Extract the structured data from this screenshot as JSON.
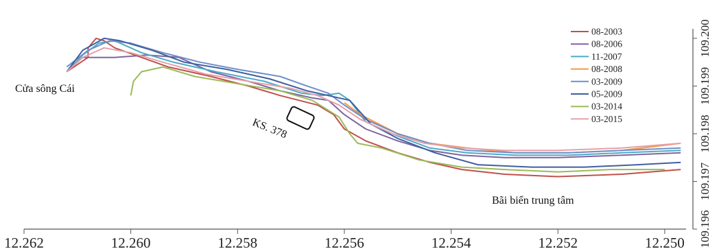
{
  "chart_data": {
    "type": "line",
    "x_ticks": [
      "12.262",
      "12.260",
      "12.258",
      "12.256",
      "12.254",
      "12.252",
      "12.250"
    ],
    "y_ticks": [
      "109.196",
      "109.197",
      "109.198",
      "109.199",
      "109.200"
    ],
    "xlim": [
      12.262,
      12.2496
    ],
    "ylim": [
      109.196,
      109.2002
    ],
    "annotations": {
      "river_mouth": "Cửa sông Cái",
      "station": "KS. 378",
      "beach": "Bãi biển trung tâm"
    },
    "legend_position": "top-right",
    "series": [
      {
        "name": "08-2003",
        "color": "#c0504d",
        "points": [
          [
            12.2612,
            109.1993
          ],
          [
            12.2608,
            109.1996
          ],
          [
            12.2608,
            109.1998
          ],
          [
            12.26065,
            109.2
          ],
          [
            12.2605,
            109.19995
          ],
          [
            12.2603,
            109.1998
          ],
          [
            12.2598,
            109.1996
          ],
          [
            12.2593,
            109.1994
          ],
          [
            12.2585,
            109.1992
          ],
          [
            12.2578,
            109.199
          ],
          [
            12.2572,
            109.1988
          ],
          [
            12.2565,
            109.1986
          ],
          [
            12.2562,
            109.1984
          ],
          [
            12.256,
            109.1981
          ],
          [
            12.2556,
            109.19785
          ],
          [
            12.255,
            109.1976
          ],
          [
            12.2544,
            109.1974
          ],
          [
            12.2538,
            109.19725
          ],
          [
            12.253,
            109.19715
          ],
          [
            12.252,
            109.1971
          ],
          [
            12.2508,
            109.19715
          ],
          [
            12.2497,
            109.19725
          ]
        ]
      },
      {
        "name": "08-2006",
        "color": "#8064a2",
        "points": [
          [
            12.2612,
            109.1993
          ],
          [
            12.2609,
            109.1996
          ],
          [
            12.2607,
            109.1996
          ],
          [
            12.2603,
            109.1996
          ],
          [
            12.2597,
            109.19965
          ],
          [
            12.2591,
            109.1996
          ],
          [
            12.2585,
            109.1993
          ],
          [
            12.2578,
            109.1991
          ],
          [
            12.2572,
            109.1989
          ],
          [
            12.2566,
            109.19875
          ],
          [
            12.2563,
            109.1987
          ],
          [
            12.256,
            109.1984
          ],
          [
            12.2556,
            109.1981
          ],
          [
            12.255,
            109.19785
          ],
          [
            12.2544,
            109.19765
          ],
          [
            12.2538,
            109.19755
          ],
          [
            12.253,
            109.1975
          ],
          [
            12.252,
            109.1975
          ],
          [
            12.2508,
            109.19755
          ],
          [
            12.2497,
            109.1976
          ]
        ]
      },
      {
        "name": "11-2007",
        "color": "#4bacc6",
        "points": [
          [
            12.2612,
            109.1993
          ],
          [
            12.2609,
            109.19965
          ],
          [
            12.2606,
            109.1999
          ],
          [
            12.2603,
            109.19995
          ],
          [
            12.2598,
            109.1997
          ],
          [
            12.2592,
            109.1995
          ],
          [
            12.2584,
            109.1993
          ],
          [
            12.2575,
            109.1991
          ],
          [
            12.2568,
            109.19885
          ],
          [
            12.2564,
            109.1988
          ],
          [
            12.2561,
            109.19885
          ],
          [
            12.2559,
            109.1987
          ],
          [
            12.2556,
            109.19825
          ],
          [
            12.255,
            109.19795
          ],
          [
            12.2544,
            109.1977
          ],
          [
            12.2537,
            109.1976
          ],
          [
            12.2528,
            109.19755
          ],
          [
            12.2518,
            109.19755
          ],
          [
            12.2508,
            109.1976
          ],
          [
            12.2497,
            109.19765
          ]
        ]
      },
      {
        "name": "08-2008",
        "color": "#f79646",
        "points": [
          [
            12.256,
            109.19865
          ],
          [
            12.2557,
            109.1984
          ],
          [
            12.255,
            109.198
          ],
          [
            12.2544,
            109.1978
          ],
          [
            12.2537,
            109.1977
          ],
          [
            12.2528,
            109.1976
          ],
          [
            12.2518,
            109.1976
          ],
          [
            12.2508,
            109.19765
          ],
          [
            12.2497,
            109.1978
          ]
        ]
      },
      {
        "name": "03-2009",
        "color": "#6f8fc9",
        "points": [
          [
            12.2612,
            109.1994
          ],
          [
            12.2608,
            109.19975
          ],
          [
            12.2604,
            109.19995
          ],
          [
            12.26,
            109.1999
          ],
          [
            12.2594,
            109.1997
          ],
          [
            12.2587,
            109.1995
          ],
          [
            12.258,
            109.19935
          ],
          [
            12.2572,
            109.1992
          ],
          [
            12.2567,
            109.199
          ],
          [
            12.2563,
            109.19885
          ],
          [
            12.256,
            109.1986
          ],
          [
            12.2556,
            109.1983
          ],
          [
            12.255,
            109.198
          ],
          [
            12.2544,
            109.1978
          ],
          [
            12.2537,
            109.19765
          ],
          [
            12.2528,
            109.1976
          ],
          [
            12.2518,
            109.1976
          ],
          [
            12.2508,
            109.19765
          ],
          [
            12.2497,
            109.1977
          ]
        ]
      },
      {
        "name": "05-2009",
        "color": "#3f5fa0",
        "points": [
          [
            12.2612,
            109.1993
          ],
          [
            12.2609,
            109.19975
          ],
          [
            12.2605,
            109.2
          ],
          [
            12.2602,
            109.19995
          ],
          [
            12.2596,
            109.19975
          ],
          [
            12.259,
            109.1995
          ],
          [
            12.2582,
            109.19935
          ],
          [
            12.2574,
            109.19915
          ],
          [
            12.2567,
            109.1989
          ],
          [
            12.2563,
            109.1988
          ],
          [
            12.2559,
            109.1987
          ],
          [
            12.2555,
            109.1982
          ],
          [
            12.255,
            109.1979
          ],
          [
            12.2543,
            109.1976
          ],
          [
            12.2535,
            109.19735
          ],
          [
            12.2525,
            109.1973
          ],
          [
            12.2515,
            109.1973
          ],
          [
            12.2505,
            109.19735
          ],
          [
            12.2497,
            109.1974
          ]
        ]
      },
      {
        "name": "03-2014",
        "color": "#9bbb59",
        "points": [
          [
            12.26,
            109.1988
          ],
          [
            12.25995,
            109.1991
          ],
          [
            12.2598,
            109.1993
          ],
          [
            12.2594,
            109.1994
          ],
          [
            12.2588,
            109.1992
          ],
          [
            12.258,
            109.19905
          ],
          [
            12.2572,
            109.1989
          ],
          [
            12.2566,
            109.1987
          ],
          [
            12.2561,
            109.19835
          ],
          [
            12.2559,
            109.198
          ],
          [
            12.25575,
            109.1978
          ],
          [
            12.2553,
            109.1977
          ],
          [
            12.2546,
            109.19745
          ],
          [
            12.2538,
            109.1973
          ],
          [
            12.253,
            109.19725
          ],
          [
            12.252,
            109.1972
          ],
          [
            12.251,
            109.19725
          ],
          [
            12.25,
            109.19725
          ]
        ]
      },
      {
        "name": "03-2015",
        "color": "#e6a0a8",
        "points": [
          [
            12.2612,
            109.1993
          ],
          [
            12.2609,
            109.1996
          ],
          [
            12.2605,
            109.1998
          ],
          [
            12.26,
            109.1997
          ],
          [
            12.2594,
            109.1995
          ],
          [
            12.2586,
            109.19925
          ],
          [
            12.2578,
            109.1991
          ],
          [
            12.257,
            109.19895
          ],
          [
            12.2565,
            109.1988
          ],
          [
            12.2561,
            109.1986
          ],
          [
            12.2557,
            109.1983
          ],
          [
            12.2551,
            109.198
          ],
          [
            12.2545,
            109.1978
          ],
          [
            12.2538,
            109.1977
          ],
          [
            12.253,
            109.19765
          ],
          [
            12.252,
            109.19765
          ],
          [
            12.2508,
            109.1977
          ],
          [
            12.2497,
            109.1978
          ]
        ]
      }
    ]
  }
}
